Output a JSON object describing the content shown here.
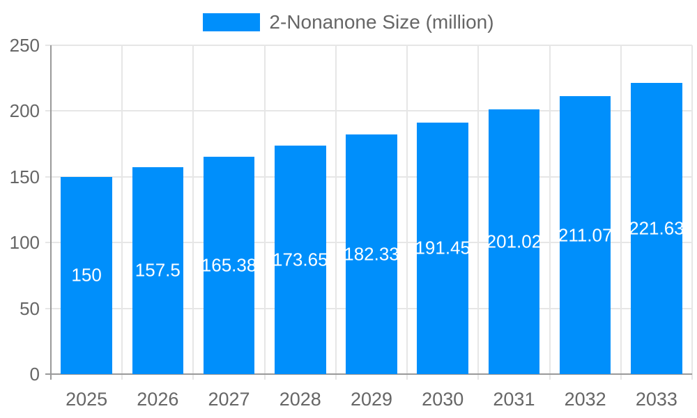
{
  "chart_data": {
    "type": "bar",
    "title": "2-Nonanone Size (million)",
    "legend": {
      "label": "2-Nonanone Size (million)",
      "position": "top"
    },
    "categories": [
      "2025",
      "2026",
      "2027",
      "2028",
      "2029",
      "2030",
      "2031",
      "2032",
      "2033"
    ],
    "series": [
      {
        "name": "2-Nonanone Size (million)",
        "values": [
          150,
          157.5,
          165.38,
          173.65,
          182.33,
          191.45,
          201.02,
          211.07,
          221.63
        ],
        "value_labels": [
          "150",
          "157.5",
          "165.38",
          "173.65",
          "182.33",
          "191.45",
          "201.02",
          "211.07",
          "221.63"
        ]
      }
    ],
    "xlabel": "",
    "ylabel": "",
    "ylim": [
      0,
      250
    ],
    "yticks": [
      0,
      50,
      100,
      150,
      200,
      250
    ],
    "grid": true,
    "bar_width_fraction": 0.72,
    "colors": {
      "bar": "#008FFB",
      "grid": "#e6e6e6",
      "axis": "#999999",
      "tick_text": "#666666",
      "legend_text": "#666666",
      "data_label": "#ffffff",
      "background": "#ffffff"
    }
  }
}
